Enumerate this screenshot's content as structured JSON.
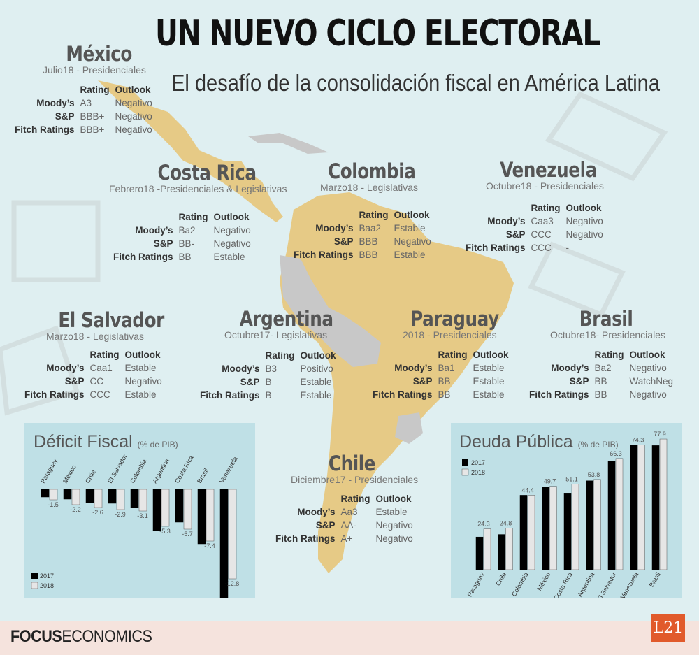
{
  "header": {
    "title": "UN NUEVO CICLO ELECTORAL",
    "subtitle": "El desafío de la consolidación fiscal en América Latina"
  },
  "rating_headers": {
    "rating": "Rating",
    "outlook": "Outlook"
  },
  "agencies": [
    "Moody’s",
    "S&P",
    "Fitch Ratings"
  ],
  "countries": {
    "mexico": {
      "name": "México",
      "election": "Julio18 - Presidenciales",
      "ratings": [
        [
          "A3",
          "Negativo"
        ],
        [
          "BBB+",
          "Negativo"
        ],
        [
          "BBB+",
          "Negativo"
        ]
      ]
    },
    "costa_rica": {
      "name": "Costa Rica",
      "election": "Febrero18 -Presidenciales & Legislativas",
      "ratings": [
        [
          "Ba2",
          "Negativo"
        ],
        [
          "BB-",
          "Negativo"
        ],
        [
          "BB",
          "Estable"
        ]
      ]
    },
    "colombia": {
      "name": "Colombia",
      "election": "Marzo18 - Legislativas",
      "ratings": [
        [
          "Baa2",
          "Estable"
        ],
        [
          "BBB",
          "Negativo"
        ],
        [
          "BBB",
          "Estable"
        ]
      ]
    },
    "venezuela": {
      "name": "Venezuela",
      "election": "Octubre18 - Presidenciales",
      "ratings": [
        [
          "Caa3",
          "Negativo"
        ],
        [
          "CCC",
          "Negativo"
        ],
        [
          "CCC",
          "-"
        ]
      ]
    },
    "el_salvador": {
      "name": "El Salvador",
      "election": "Marzo18 - Legislativas",
      "ratings": [
        [
          "Caa1",
          "Estable"
        ],
        [
          "CC",
          "Negativo"
        ],
        [
          "CCC",
          "Estable"
        ]
      ]
    },
    "argentina": {
      "name": "Argentina",
      "election": "Octubre17- Legislativas",
      "ratings": [
        [
          "B3",
          "Positivo"
        ],
        [
          "B",
          "Estable"
        ],
        [
          "B",
          "Estable"
        ]
      ]
    },
    "paraguay": {
      "name": "Paraguay",
      "election": "2018 - Presidenciales",
      "ratings": [
        [
          "Ba1",
          "Estable"
        ],
        [
          "BB",
          "Estable"
        ],
        [
          "BB",
          "Estable"
        ]
      ]
    },
    "brasil": {
      "name": "Brasil",
      "election": "Octubre18-  Presidenciales",
      "ratings": [
        [
          "Ba2",
          "Negativo"
        ],
        [
          "BB",
          "WatchNeg"
        ],
        [
          "BB",
          "Negativo"
        ]
      ]
    },
    "chile": {
      "name": "Chile",
      "election": "Diciembre17 - Presidenciales",
      "ratings": [
        [
          "Aa3",
          "Estable"
        ],
        [
          "AA-",
          "Negativo"
        ],
        [
          "A+",
          "Negativo"
        ]
      ]
    }
  },
  "colors": {
    "background": "#dfeff1",
    "land": "#e6ca86",
    "land_grey": "#c8c8c8",
    "panel": "#bfe0e6",
    "bar_2017": "#000000",
    "bar_2018": "#e6e6e6",
    "accent": "#e15a2b"
  },
  "footer": {
    "brand_bold": "FOCUS",
    "brand_light": "ECONOMICS",
    "logo": "L21"
  },
  "chart_data": [
    {
      "type": "bar",
      "title": "Déficit Fiscal",
      "subtitle": "(% de PIB)",
      "categories": [
        "Paraguay",
        "México",
        "Chile",
        "El Salvador",
        "Colombia",
        "Argentina",
        "Costa Rica",
        "Brasil",
        "Venezuela"
      ],
      "series": [
        {
          "name": "2017",
          "values": [
            -1.1,
            -1.4,
            -1.9,
            -2.0,
            -2.6,
            -5.9,
            -4.7,
            -7.8,
            -16.6
          ]
        },
        {
          "name": "2018",
          "values": [
            -1.5,
            -2.2,
            -2.6,
            -2.9,
            -3.1,
            -5.3,
            -5.7,
            -7.4,
            -12.8
          ]
        }
      ],
      "labels": [
        "-1.5",
        "-2.2",
        "-2.6",
        "-2.9",
        "-3.1",
        "-5.3",
        "-5.7",
        "-7.4",
        "-12.8"
      ],
      "legend": "bottom-left"
    },
    {
      "type": "bar",
      "title": "Deuda Pública",
      "subtitle": "(% de PIB)",
      "categories": [
        "Paraguay",
        "Chile",
        "Colombia",
        "México",
        "Costa Rica",
        "Argentina",
        "El Salvador",
        "Venezuela",
        "Brasil"
      ],
      "series": [
        {
          "name": "2017",
          "values": [
            19.5,
            21.0,
            44.4,
            49.3,
            45.7,
            53.0,
            64.9,
            74.3,
            74.0
          ]
        },
        {
          "name": "2018",
          "values": [
            24.3,
            24.8,
            44.4,
            49.7,
            51.1,
            53.8,
            66.3,
            74.3,
            77.9
          ]
        }
      ],
      "labels": [
        "24.3",
        "24.8",
        "44.4",
        "49.7",
        "51.1",
        "53.8",
        "66.3",
        "74.3",
        "77.9"
      ],
      "legend": "top-left"
    }
  ]
}
